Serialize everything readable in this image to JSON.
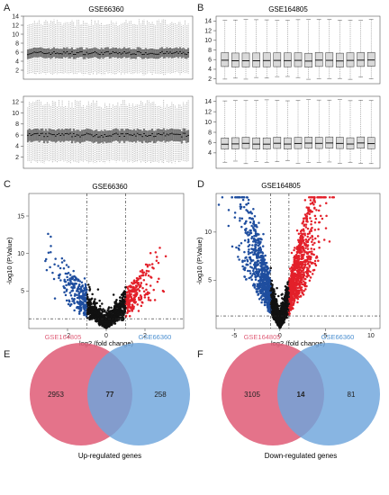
{
  "panels": {
    "A": {
      "letter": "A",
      "title": "GSE66360"
    },
    "B": {
      "letter": "B",
      "title": "GSE164805"
    },
    "C": {
      "letter": "C",
      "title": "GSE66360",
      "xlabel": "log2 (fold change)",
      "ylabel": "-log10 (P.Value)"
    },
    "D": {
      "letter": "D",
      "title": "GSE164805",
      "xlabel": "log2 (fold change)",
      "ylabel": "-log10 (P.Value)"
    },
    "E": {
      "letter": "E",
      "caption": "Up-regulated genes"
    },
    "F": {
      "letter": "F",
      "caption": "Down-regulated genes"
    }
  },
  "colors": {
    "up": "#e3202a",
    "down": "#1f4e9f",
    "ns": "#111111",
    "venn_red": "#e0607a",
    "venn_blue": "#6ea5dc"
  },
  "chart_data": [
    {
      "id": "A-top",
      "type": "box",
      "title": "GSE66360",
      "ylim": [
        0,
        14
      ],
      "yticks": [
        "2",
        "4",
        "6",
        "8",
        "10",
        "12",
        "14"
      ],
      "n_samples": 99,
      "median": 5.8,
      "q1": 4.8,
      "q3": 6.8
    },
    {
      "id": "A-bottom",
      "type": "box",
      "ylim": [
        0,
        13
      ],
      "yticks": [
        "2",
        "4",
        "6",
        "8",
        "10",
        "12"
      ],
      "n_samples": 99,
      "median": 6.0,
      "q1": 4.8,
      "q3": 6.9
    },
    {
      "id": "B-top",
      "type": "box",
      "title": "GSE164805",
      "ylim": [
        1,
        15
      ],
      "yticks": [
        "2",
        "4",
        "6",
        "8",
        "10",
        "12",
        "14"
      ],
      "n_samples": 15,
      "median": 5.8,
      "q1": 4.5,
      "q3": 7.4
    },
    {
      "id": "B-bottom",
      "type": "box",
      "ylim": [
        1,
        15
      ],
      "yticks": [
        "4",
        "6",
        "8",
        "10",
        "12",
        "14"
      ],
      "n_samples": 15,
      "median": 5.8,
      "q1": 4.8,
      "q3": 7.0
    },
    {
      "id": "C",
      "type": "scatter",
      "title": "GSE66360",
      "xlabel": "log2 (fold change)",
      "ylabel": "-log10 (P.Value)",
      "xlim": [
        -4,
        4
      ],
      "ylim": [
        0,
        18
      ],
      "xticks": [
        "-2",
        "0",
        "2"
      ],
      "yticks": [
        "5",
        "10",
        "15"
      ],
      "fc_cutoffs": [
        -1,
        1
      ],
      "p_cutoff": 1.3
    },
    {
      "id": "D",
      "type": "scatter",
      "title": "GSE164805",
      "xlabel": "log2 (fold change)",
      "ylabel": "-log10 (P.Value)",
      "xlim": [
        -7,
        11
      ],
      "ylim": [
        0,
        14
      ],
      "xticks": [
        "-5",
        "0",
        "5",
        "10"
      ],
      "yticks": [
        "5",
        "10"
      ],
      "fc_cutoffs": [
        -1,
        1
      ],
      "p_cutoff": 1.3
    },
    {
      "id": "E",
      "type": "venn",
      "sets": [
        "GSE164805",
        "GSE66360"
      ],
      "only_left": "2953",
      "intersection": "77",
      "only_right": "258",
      "caption": "Up-regulated genes"
    },
    {
      "id": "F",
      "type": "venn",
      "sets": [
        "GSE164805",
        "GSE66360"
      ],
      "only_left": "3105",
      "intersection": "14",
      "only_right": "81",
      "caption": "Down-regulated genes"
    }
  ]
}
